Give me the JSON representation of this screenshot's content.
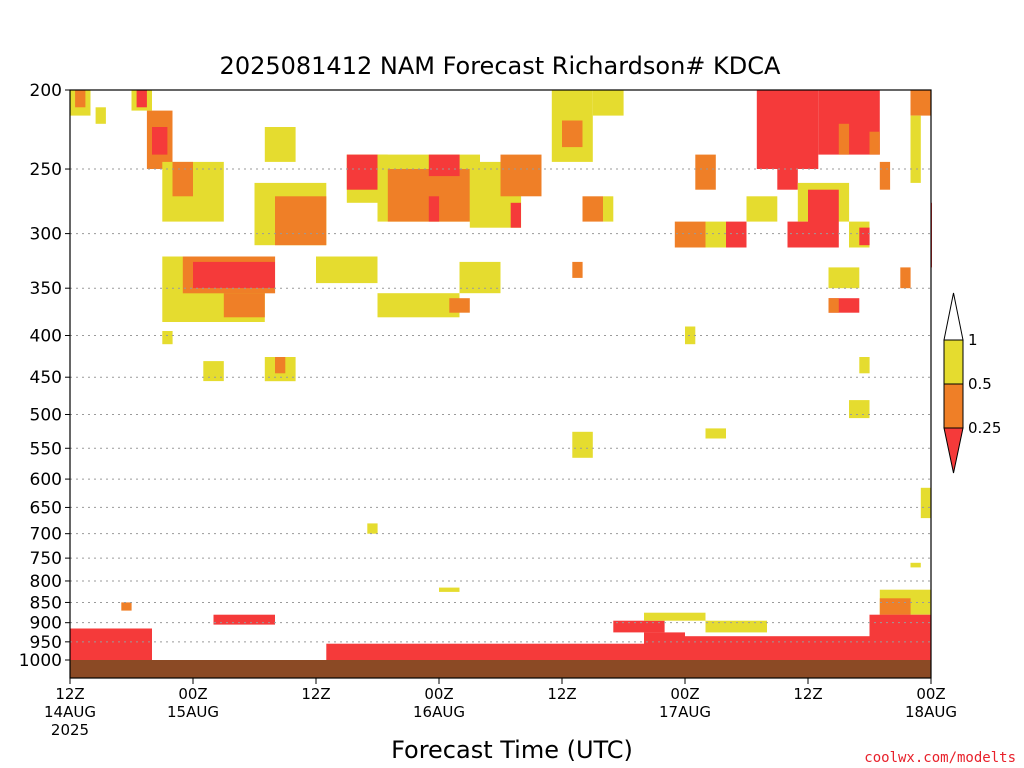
{
  "chart_data": {
    "type": "heatmap",
    "title": "2025081412 NAM Forecast Richardson# KDCA",
    "xlabel": "Forecast Time (UTC)",
    "ylabel": "",
    "y_scale": "log-pressure",
    "y_inverted": true,
    "ylim": [
      1000,
      200
    ],
    "xlim_hours": [
      0,
      84
    ],
    "grid": "dotted horizontal at pressure levels",
    "y_ticks": [
      200,
      250,
      300,
      350,
      400,
      450,
      500,
      550,
      600,
      650,
      700,
      750,
      800,
      850,
      900,
      950,
      1000
    ],
    "x_ticks": [
      {
        "hour": 0,
        "line1": "12Z",
        "line2": "14AUG",
        "line3": "2025"
      },
      {
        "hour": 12,
        "line1": "00Z",
        "line2": "15AUG",
        "line3": ""
      },
      {
        "hour": 24,
        "line1": "12Z",
        "line2": "",
        "line3": ""
      },
      {
        "hour": 36,
        "line1": "00Z",
        "line2": "16AUG",
        "line3": ""
      },
      {
        "hour": 48,
        "line1": "12Z",
        "line2": "",
        "line3": ""
      },
      {
        "hour": 60,
        "line1": "00Z",
        "line2": "17AUG",
        "line3": ""
      },
      {
        "hour": 72,
        "line1": "12Z",
        "line2": "",
        "line3": ""
      },
      {
        "hour": 84,
        "line1": "00Z",
        "line2": "18AUG",
        "line3": ""
      }
    ],
    "colorbar": {
      "ticks": [
        "1",
        "0.5",
        "0.25"
      ],
      "bins": [
        {
          "range": "< 0.25",
          "color": "#f53a3a"
        },
        {
          "range": "0.25-0.5",
          "color": "#ef7f27"
        },
        {
          "range": "0.5-1",
          "color": "#e5dc2f"
        },
        {
          "range": "> 1",
          "color": "#ffffff"
        }
      ]
    },
    "colors": {
      "low": "#f53a3a",
      "mid": "#ef7f27",
      "high": "#e5dc2f",
      "ground": "#8b4a25"
    },
    "regions": [
      {
        "h0": 0,
        "h1": 2,
        "p0": 200,
        "p1": 215,
        "cat": "high"
      },
      {
        "h0": 0.5,
        "h1": 1.5,
        "p0": 200,
        "p1": 210,
        "cat": "mid"
      },
      {
        "h0": 2.5,
        "h1": 3.5,
        "p0": 210,
        "p1": 220,
        "cat": "high"
      },
      {
        "h0": 6,
        "h1": 8,
        "p0": 200,
        "p1": 212,
        "cat": "high"
      },
      {
        "h0": 6.5,
        "h1": 7.5,
        "p0": 200,
        "p1": 210,
        "cat": "low"
      },
      {
        "h0": 7.5,
        "h1": 10,
        "p0": 212,
        "p1": 250,
        "cat": "mid"
      },
      {
        "h0": 8,
        "h1": 9.5,
        "p0": 222,
        "p1": 240,
        "cat": "low"
      },
      {
        "h0": 9,
        "h1": 15,
        "p0": 245,
        "p1": 290,
        "cat": "high"
      },
      {
        "h0": 10,
        "h1": 12,
        "p0": 245,
        "p1": 270,
        "cat": "mid"
      },
      {
        "h0": 19,
        "h1": 22,
        "p0": 222,
        "p1": 245,
        "cat": "high"
      },
      {
        "h0": 18,
        "h1": 25,
        "p0": 260,
        "p1": 310,
        "cat": "high"
      },
      {
        "h0": 20,
        "h1": 25,
        "p0": 270,
        "p1": 310,
        "cat": "mid"
      },
      {
        "h0": 27,
        "h1": 31,
        "p0": 240,
        "p1": 275,
        "cat": "high"
      },
      {
        "h0": 27,
        "h1": 30,
        "p0": 240,
        "p1": 265,
        "cat": "low"
      },
      {
        "h0": 30,
        "h1": 40,
        "p0": 240,
        "p1": 290,
        "cat": "high"
      },
      {
        "h0": 31,
        "h1": 39,
        "p0": 250,
        "p1": 290,
        "cat": "mid"
      },
      {
        "h0": 35,
        "h1": 38,
        "p0": 240,
        "p1": 255,
        "cat": "low"
      },
      {
        "h0": 35,
        "h1": 36,
        "p0": 270,
        "p1": 290,
        "cat": "low"
      },
      {
        "h0": 39,
        "h1": 44,
        "p0": 245,
        "p1": 295,
        "cat": "high"
      },
      {
        "h0": 42,
        "h1": 46,
        "p0": 240,
        "p1": 270,
        "cat": "mid"
      },
      {
        "h0": 43,
        "h1": 44,
        "p0": 275,
        "p1": 295,
        "cat": "low"
      },
      {
        "h0": 9,
        "h1": 19,
        "p0": 320,
        "p1": 385,
        "cat": "high"
      },
      {
        "h0": 11,
        "h1": 20,
        "p0": 320,
        "p1": 355,
        "cat": "mid"
      },
      {
        "h0": 12,
        "h1": 20,
        "p0": 325,
        "p1": 350,
        "cat": "low"
      },
      {
        "h0": 15,
        "h1": 19,
        "p0": 355,
        "p1": 380,
        "cat": "mid"
      },
      {
        "h0": 24,
        "h1": 30,
        "p0": 320,
        "p1": 345,
        "cat": "high"
      },
      {
        "h0": 30,
        "h1": 38,
        "p0": 355,
        "p1": 380,
        "cat": "high"
      },
      {
        "h0": 37,
        "h1": 39,
        "p0": 360,
        "p1": 375,
        "cat": "mid"
      },
      {
        "h0": 38,
        "h1": 42,
        "p0": 325,
        "p1": 355,
        "cat": "high"
      },
      {
        "h0": 47,
        "h1": 51,
        "p0": 200,
        "p1": 245,
        "cat": "high"
      },
      {
        "h0": 48,
        "h1": 50,
        "p0": 218,
        "p1": 235,
        "cat": "mid"
      },
      {
        "h0": 51,
        "h1": 54,
        "p0": 200,
        "p1": 215,
        "cat": "high"
      },
      {
        "h0": 52,
        "h1": 53,
        "p0": 270,
        "p1": 290,
        "cat": "high"
      },
      {
        "h0": 50,
        "h1": 52,
        "p0": 270,
        "p1": 290,
        "cat": "mid"
      },
      {
        "h0": 49,
        "h1": 50,
        "p0": 325,
        "p1": 340,
        "cat": "mid"
      },
      {
        "h0": 59,
        "h1": 62,
        "p0": 290,
        "p1": 312,
        "cat": "mid"
      },
      {
        "h0": 62,
        "h1": 64,
        "p0": 290,
        "p1": 312,
        "cat": "high"
      },
      {
        "h0": 64,
        "h1": 66,
        "p0": 290,
        "p1": 312,
        "cat": "low"
      },
      {
        "h0": 61,
        "h1": 63,
        "p0": 240,
        "p1": 265,
        "cat": "mid"
      },
      {
        "h0": 66,
        "h1": 69,
        "p0": 270,
        "p1": 290,
        "cat": "high"
      },
      {
        "h0": 67,
        "h1": 73,
        "p0": 200,
        "p1": 250,
        "cat": "low"
      },
      {
        "h0": 69,
        "h1": 71,
        "p0": 245,
        "p1": 265,
        "cat": "low"
      },
      {
        "h0": 71,
        "h1": 76,
        "p0": 260,
        "p1": 290,
        "cat": "high"
      },
      {
        "h0": 72,
        "h1": 75,
        "p0": 265,
        "p1": 312,
        "cat": "low"
      },
      {
        "h0": 70,
        "h1": 73,
        "p0": 290,
        "p1": 312,
        "cat": "low"
      },
      {
        "h0": 73,
        "h1": 79,
        "p0": 200,
        "p1": 240,
        "cat": "low"
      },
      {
        "h0": 75,
        "h1": 76,
        "p0": 220,
        "p1": 240,
        "cat": "mid"
      },
      {
        "h0": 78,
        "h1": 79,
        "p0": 225,
        "p1": 240,
        "cat": "mid"
      },
      {
        "h0": 76,
        "h1": 78,
        "p0": 290,
        "p1": 312,
        "cat": "high"
      },
      {
        "h0": 77,
        "h1": 78,
        "p0": 295,
        "p1": 310,
        "cat": "low"
      },
      {
        "h0": 79,
        "h1": 80,
        "p0": 245,
        "p1": 265,
        "cat": "mid"
      },
      {
        "h0": 74,
        "h1": 77,
        "p0": 330,
        "p1": 350,
        "cat": "high"
      },
      {
        "h0": 74,
        "h1": 77,
        "p0": 360,
        "p1": 375,
        "cat": "low"
      },
      {
        "h0": 74,
        "h1": 75,
        "p0": 360,
        "p1": 375,
        "cat": "mid"
      },
      {
        "h0": 82,
        "h1": 84,
        "p0": 200,
        "p1": 215,
        "cat": "mid"
      },
      {
        "h0": 82,
        "h1": 83,
        "p0": 215,
        "p1": 260,
        "cat": "high"
      },
      {
        "h0": 84,
        "h1": 85,
        "p0": 275,
        "p1": 330,
        "cat": "low"
      },
      {
        "h0": 81,
        "h1": 82,
        "p0": 330,
        "p1": 350,
        "cat": "mid"
      },
      {
        "h0": 9,
        "h1": 10,
        "p0": 395,
        "p1": 410,
        "cat": "high"
      },
      {
        "h0": 13,
        "h1": 15,
        "p0": 430,
        "p1": 455,
        "cat": "high"
      },
      {
        "h0": 19,
        "h1": 22,
        "p0": 425,
        "p1": 455,
        "cat": "high"
      },
      {
        "h0": 20,
        "h1": 21,
        "p0": 425,
        "p1": 445,
        "cat": "mid"
      },
      {
        "h0": 60,
        "h1": 61,
        "p0": 390,
        "p1": 410,
        "cat": "high"
      },
      {
        "h0": 76,
        "h1": 78,
        "p0": 480,
        "p1": 505,
        "cat": "high"
      },
      {
        "h0": 77,
        "h1": 78,
        "p0": 425,
        "p1": 445,
        "cat": "high"
      },
      {
        "h0": 49,
        "h1": 51,
        "p0": 525,
        "p1": 565,
        "cat": "high"
      },
      {
        "h0": 62,
        "h1": 64,
        "p0": 520,
        "p1": 535,
        "cat": "high"
      },
      {
        "h0": 83,
        "h1": 84,
        "p0": 615,
        "p1": 670,
        "cat": "high"
      },
      {
        "h0": 29,
        "h1": 30,
        "p0": 680,
        "p1": 700,
        "cat": "high"
      },
      {
        "h0": 36,
        "h1": 38,
        "p0": 815,
        "p1": 825,
        "cat": "high"
      },
      {
        "h0": 82,
        "h1": 83,
        "p0": 760,
        "p1": 770,
        "cat": "high"
      },
      {
        "h0": 79,
        "h1": 84,
        "p0": 820,
        "p1": 880,
        "cat": "high"
      },
      {
        "h0": 79,
        "h1": 82,
        "p0": 840,
        "p1": 880,
        "cat": "mid"
      },
      {
        "h0": 78,
        "h1": 84,
        "p0": 880,
        "p1": 1000,
        "cat": "low"
      },
      {
        "h0": 0,
        "h1": 8,
        "p0": 915,
        "p1": 1000,
        "cat": "low"
      },
      {
        "h0": 5,
        "h1": 6,
        "p0": 850,
        "p1": 870,
        "cat": "mid"
      },
      {
        "h0": 14,
        "h1": 20,
        "p0": 880,
        "p1": 905,
        "cat": "low"
      },
      {
        "h0": 25,
        "h1": 56,
        "p0": 955,
        "p1": 1000,
        "cat": "low"
      },
      {
        "h0": 53,
        "h1": 58,
        "p0": 895,
        "p1": 925,
        "cat": "low"
      },
      {
        "h0": 56,
        "h1": 62,
        "p0": 875,
        "p1": 895,
        "cat": "high"
      },
      {
        "h0": 56,
        "h1": 60,
        "p0": 925,
        "p1": 1000,
        "cat": "low"
      },
      {
        "h0": 60,
        "h1": 78,
        "p0": 935,
        "p1": 1000,
        "cat": "low"
      },
      {
        "h0": 62,
        "h1": 68,
        "p0": 895,
        "p1": 925,
        "cat": "high"
      }
    ]
  },
  "credit": "coolwx.com/modelts"
}
